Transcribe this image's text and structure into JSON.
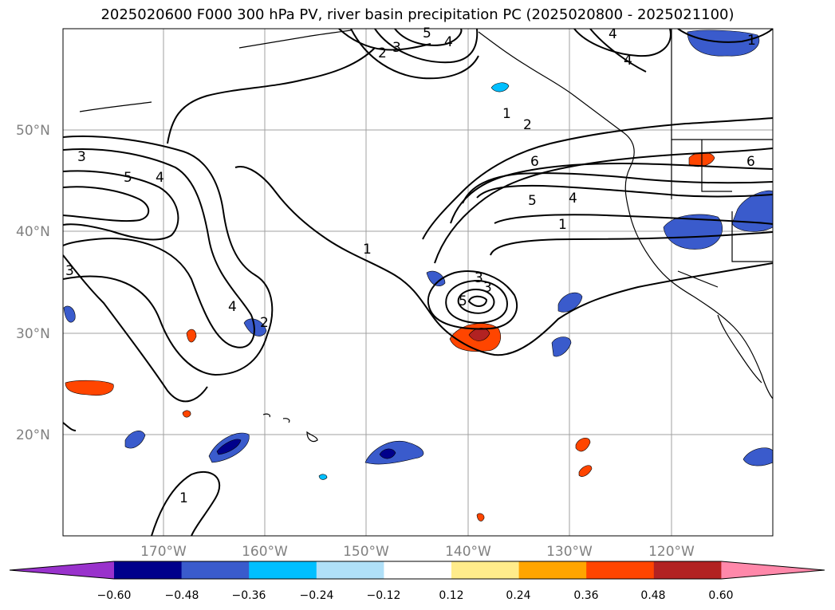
{
  "title": "2025020600 F000 300 hPa PV, river basin precipitation PC (2025020800 - 2025021100)",
  "map": {
    "lat_labels": [
      "50°N",
      "40°N",
      "30°N",
      "20°N"
    ],
    "lon_labels": [
      "170°W",
      "160°W",
      "150°W",
      "140°W",
      "130°W",
      "120°W"
    ],
    "contour_labels": [
      "1",
      "2",
      "3",
      "4",
      "5",
      "3",
      "5",
      "4",
      "3",
      "2",
      "1",
      "1",
      "2",
      "6",
      "5",
      "4",
      "1",
      "6",
      "4",
      "3",
      "4",
      "3",
      "5",
      "4",
      "1",
      "2",
      "3"
    ],
    "grid_color": "#a0a0a0",
    "contour_color": "#000000"
  },
  "colorbar": {
    "ticks": [
      "−0.60",
      "−0.48",
      "−0.36",
      "−0.24",
      "−0.12",
      "0.12",
      "0.24",
      "0.36",
      "0.48",
      "0.60"
    ],
    "colors": [
      "#9932cc",
      "#00008b",
      "#3a5bcc",
      "#00bfff",
      "#b0e0f8",
      "#ffffff",
      "#ffec8b",
      "#ffa500",
      "#ff4500",
      "#b22222",
      "#ff88aa"
    ]
  }
}
